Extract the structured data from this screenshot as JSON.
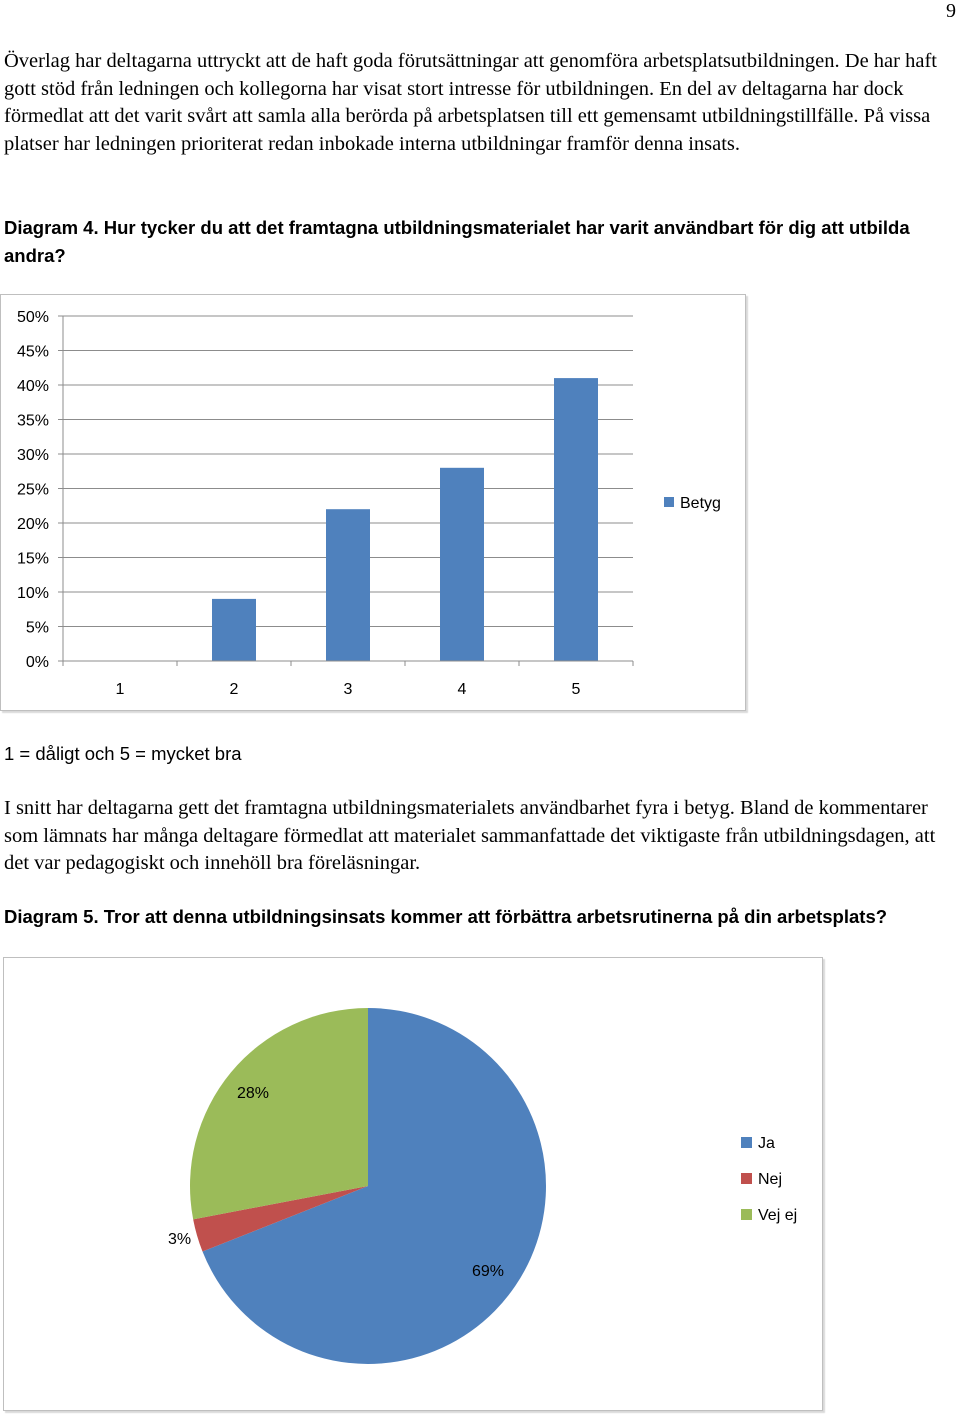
{
  "page": {
    "number": "9"
  },
  "intro_paragraph": "Överlag har deltagarna uttryckt att de haft goda förutsättningar att genomföra arbetsplatsutbildningen. De har haft gott stöd från ledningen och kollegorna har visat stort intresse för utbildningen. En del av deltagarna har dock förmedlat att det varit svårt att samla alla berörda på arbetsplatsen till ett gemensamt utbildningstillfälle. På vissa platser har ledningen prioriterat redan inbokade interna utbildningar framför denna insats.",
  "diagram4": {
    "heading": "Diagram 4. Hur tycker du att det framtagna utbildningsmaterialet har varit användbart för dig att utbilda andra?",
    "scale_note": "1 = dåligt och 5 = mycket bra",
    "colors": {
      "bar": "#4f81bd"
    }
  },
  "summary_paragraph": "I snitt har deltagarna gett det framtagna utbildningsmaterialets användbarhet fyra i betyg. Bland de kommentarer som lämnats har många deltagare förmedlat att materialet sammanfattade det viktigaste från utbildningsdagen, att det var pedagogiskt och innehöll bra föreläsningar.",
  "diagram5": {
    "heading": "Diagram 5. Tror att denna utbildningsinsats kommer att förbättra arbetsrutinerna på din arbetsplats?",
    "colors": {
      "Ja": "#4f81bd",
      "Nej": "#c0504d",
      "Vej ej": "#9bbb59"
    }
  },
  "chart_data": [
    {
      "type": "bar",
      "categories": [
        "1",
        "2",
        "3",
        "4",
        "5"
      ],
      "series": [
        {
          "name": "Betyg",
          "values": [
            0,
            9,
            22,
            28,
            41
          ]
        }
      ],
      "ylim": [
        0,
        50
      ],
      "yticks": [
        "0%",
        "5%",
        "10%",
        "15%",
        "20%",
        "25%",
        "30%",
        "35%",
        "40%",
        "45%",
        "50%"
      ],
      "grid": true,
      "legend": "right"
    },
    {
      "type": "pie",
      "labels": [
        "Ja",
        "Nej",
        "Vej ej"
      ],
      "values": [
        69,
        3,
        28
      ],
      "data_labels": [
        "69%",
        "3%",
        "28%"
      ],
      "legend": "right"
    }
  ]
}
